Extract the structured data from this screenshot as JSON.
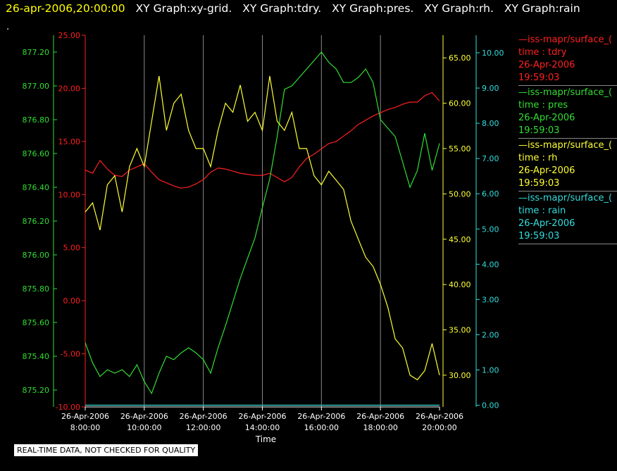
{
  "header": {
    "timestamp": "26-apr-2006,20:00:00",
    "graph_titles": [
      "XY Graph:xy-grid.",
      "XY Graph:tdry.",
      "XY Graph:pres.",
      "XY Graph:rh.",
      "XY Graph:rain"
    ],
    "dot": "."
  },
  "legend": [
    {
      "name": "—iss-mapr/surface_(",
      "line1": "time : tdry",
      "line2": "26-Apr-2006",
      "line3": "19:59:03",
      "color": "#ff2020"
    },
    {
      "name": "—iss-mapr/surface_(",
      "line1": "time : pres",
      "line2": "26-Apr-2006",
      "line3": "19:59:03",
      "color": "#33dd33"
    },
    {
      "name": "—iss-mapr/surface_(",
      "line1": "time : rh",
      "line2": "26-Apr-2006",
      "line3": "19:59:03",
      "color": "#ffff33"
    },
    {
      "name": "—iss-mapr/surface_(",
      "line1": "time : rain",
      "line2": "26-Apr-2006",
      "line3": "19:59:03",
      "color": "#33dddd"
    }
  ],
  "qc_note": "REAL-TIME DATA, NOT CHECKED FOR QUALITY",
  "chart_data": {
    "type": "line",
    "xlabel": "Time",
    "x_ticks": [
      {
        "date": "26-Apr-2006",
        "time": "8:00:00"
      },
      {
        "date": "26-Apr-2006",
        "time": "10:00:00"
      },
      {
        "date": "26-Apr-2006",
        "time": "12:00:00"
      },
      {
        "date": "26-Apr-2006",
        "time": "14:00:00"
      },
      {
        "date": "26-Apr-2006",
        "time": "16:00:00"
      },
      {
        "date": "26-Apr-2006",
        "time": "18:00:00"
      },
      {
        "date": "26-Apr-2006",
        "time": "20:00:00"
      }
    ],
    "xlim_hours": [
      8,
      20
    ],
    "grid": "vertical at each x tick",
    "axes": {
      "pres": {
        "ylim": [
          875.1,
          877.3
        ],
        "ticks": [
          "875.20",
          "875.40",
          "875.60",
          "875.80",
          "876.00",
          "876.20",
          "876.40",
          "876.60",
          "876.80",
          "877.00",
          "877.20"
        ],
        "color": "#33dd33"
      },
      "tdry": {
        "ylim": [
          -10,
          25
        ],
        "ticks": [
          "-10.00",
          "-5.00",
          "0.00",
          "5.00",
          "10.00",
          "15.00",
          "20.00",
          "25.00"
        ],
        "color": "#ff2020"
      },
      "rh": {
        "ylim": [
          26.5,
          67.5
        ],
        "ticks": [
          "30.00",
          "35.00",
          "40.00",
          "45.00",
          "50.00",
          "55.00",
          "60.00",
          "65.00"
        ],
        "color": "#ffff33"
      },
      "rain": {
        "ylim": [
          -0.05,
          10.5
        ],
        "ticks": [
          "0.00",
          "1.00",
          "2.00",
          "3.00",
          "4.00",
          "5.00",
          "6.00",
          "7.00",
          "8.00",
          "9.00",
          "10.00"
        ],
        "color": "#33dddd"
      }
    },
    "series": [
      {
        "key": "tdry",
        "axis": "tdry",
        "x": [
          8.0,
          8.25,
          8.5,
          8.75,
          9.0,
          9.25,
          9.5,
          9.75,
          10.0,
          10.25,
          10.5,
          10.75,
          11.0,
          11.25,
          11.5,
          11.75,
          12.0,
          12.25,
          12.5,
          12.75,
          13.0,
          13.25,
          13.5,
          13.75,
          14.0,
          14.25,
          14.5,
          14.75,
          15.0,
          15.25,
          15.5,
          15.75,
          16.0,
          16.25,
          16.5,
          16.75,
          17.0,
          17.25,
          17.5,
          17.75,
          18.0,
          18.25,
          18.5,
          18.75,
          19.0,
          19.25,
          19.5,
          19.75,
          20.0
        ],
        "y": [
          12.3,
          12.0,
          13.2,
          12.4,
          11.8,
          11.7,
          12.3,
          12.6,
          12.9,
          12.1,
          11.4,
          11.1,
          10.8,
          10.6,
          10.7,
          11.0,
          11.4,
          12.1,
          12.5,
          12.4,
          12.2,
          12.0,
          11.9,
          11.8,
          11.8,
          12.0,
          11.6,
          11.2,
          11.6,
          12.6,
          13.4,
          13.8,
          14.3,
          14.8,
          15.0,
          15.5,
          16.0,
          16.6,
          17.0,
          17.4,
          17.7,
          18.0,
          18.2,
          18.5,
          18.7,
          18.7,
          19.3,
          19.6,
          18.8
        ]
      },
      {
        "key": "pres",
        "axis": "pres",
        "x": [
          8.0,
          8.25,
          8.5,
          8.75,
          9.0,
          9.25,
          9.5,
          9.75,
          10.0,
          10.25,
          10.5,
          10.75,
          11.0,
          11.25,
          11.5,
          11.75,
          12.0,
          12.25,
          12.5,
          12.75,
          13.0,
          13.25,
          13.5,
          13.75,
          14.0,
          14.25,
          14.5,
          14.75,
          15.0,
          15.25,
          15.5,
          15.75,
          16.0,
          16.25,
          16.5,
          16.75,
          17.0,
          17.25,
          17.5,
          17.75,
          18.0,
          18.25,
          18.5,
          18.75,
          19.0,
          19.25,
          19.5,
          19.75,
          20.0
        ],
        "y": [
          875.48,
          875.36,
          875.28,
          875.32,
          875.3,
          875.32,
          875.28,
          875.35,
          875.25,
          875.18,
          875.3,
          875.4,
          875.38,
          875.42,
          875.45,
          875.42,
          875.38,
          875.3,
          875.45,
          875.58,
          875.72,
          875.86,
          875.98,
          876.1,
          876.28,
          876.45,
          876.7,
          876.98,
          877.0,
          877.05,
          877.1,
          877.15,
          877.2,
          877.14,
          877.1,
          877.02,
          877.02,
          877.05,
          877.1,
          877.02,
          876.8,
          876.75,
          876.7,
          876.55,
          876.4,
          876.5,
          876.72,
          876.5,
          876.66
        ]
      },
      {
        "key": "rh",
        "axis": "rh",
        "x": [
          8.0,
          8.25,
          8.5,
          8.75,
          9.0,
          9.25,
          9.5,
          9.75,
          10.0,
          10.25,
          10.5,
          10.75,
          11.0,
          11.25,
          11.5,
          11.75,
          12.0,
          12.25,
          12.5,
          12.75,
          13.0,
          13.25,
          13.5,
          13.75,
          14.0,
          14.25,
          14.5,
          14.75,
          15.0,
          15.25,
          15.5,
          15.75,
          16.0,
          16.25,
          16.5,
          16.75,
          17.0,
          17.25,
          17.5,
          17.75,
          18.0,
          18.25,
          18.5,
          18.75,
          19.0,
          19.25,
          19.5,
          19.75,
          20.0
        ],
        "y": [
          48.0,
          49.0,
          46.0,
          51.0,
          52.0,
          48.0,
          53.0,
          55.0,
          53.0,
          58.0,
          63.0,
          57.0,
          60.0,
          61.0,
          57.0,
          55.0,
          55.0,
          53.0,
          57.0,
          60.0,
          59.0,
          62.0,
          58.0,
          59.0,
          57.0,
          63.0,
          58.0,
          57.0,
          59.0,
          55.0,
          55.0,
          52.0,
          51.0,
          52.5,
          51.5,
          50.5,
          47.0,
          45.0,
          43.0,
          42.0,
          40.0,
          37.5,
          34.0,
          33.0,
          30.0,
          29.5,
          30.5,
          33.5,
          30.0
        ]
      },
      {
        "key": "rain",
        "axis": "rain",
        "x": [
          8.0,
          20.0
        ],
        "y": [
          0.0,
          0.0
        ]
      }
    ]
  }
}
